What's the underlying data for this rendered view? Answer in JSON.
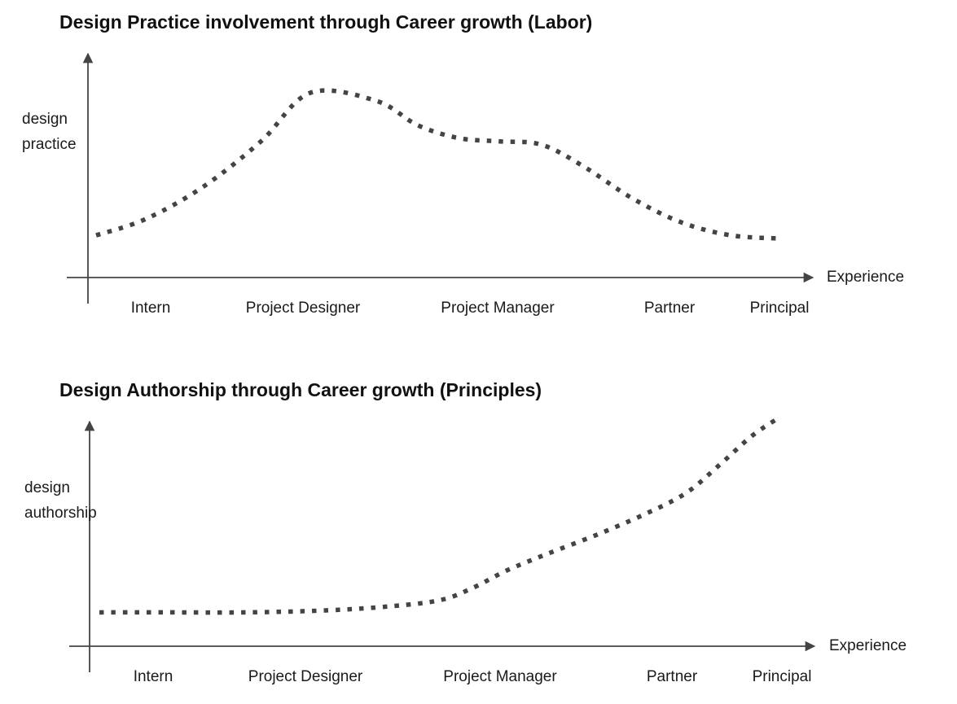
{
  "chart_data": [
    {
      "type": "line",
      "title": "Design Practice involvement through Career growth (Labor)",
      "xlabel": "Experience",
      "ylabel": [
        "design",
        "practice"
      ],
      "categories": [
        "Intern",
        "Project Designer",
        "Project Manager",
        "Partner",
        "Principal"
      ],
      "line_style": "dotted",
      "grid": false,
      "ylim": [
        0,
        100
      ],
      "series": [
        {
          "x": [
            0.0,
            0.3,
            0.65,
            1.0,
            1.3,
            1.7,
            1.95,
            2.2,
            2.45,
            2.7,
            2.95,
            3.25,
            3.55,
            3.85,
            4.15
          ],
          "values": [
            12,
            22,
            42,
            70,
            100,
            95,
            80,
            72,
            70,
            68,
            55,
            35,
            20,
            12,
            10
          ]
        }
      ]
    },
    {
      "type": "line",
      "title": "Design Authorship through Career growth (Principles)",
      "xlabel": "Experience",
      "ylabel": [
        "design",
        "authorship"
      ],
      "categories": [
        "Intern",
        "Project Designer",
        "Project Manager",
        "Partner",
        "Principal"
      ],
      "line_style": "dotted",
      "grid": false,
      "ylim": [
        0,
        100
      ],
      "series": [
        {
          "x": [
            0.0,
            0.4,
            0.9,
            1.4,
            1.8,
            2.1,
            2.3,
            2.5,
            2.75,
            3.05,
            3.35,
            3.6,
            3.8,
            4.0,
            4.15
          ],
          "values": [
            8,
            8,
            8,
            9,
            11,
            14,
            20,
            28,
            36,
            45,
            55,
            65,
            78,
            92,
            100
          ]
        }
      ]
    }
  ]
}
